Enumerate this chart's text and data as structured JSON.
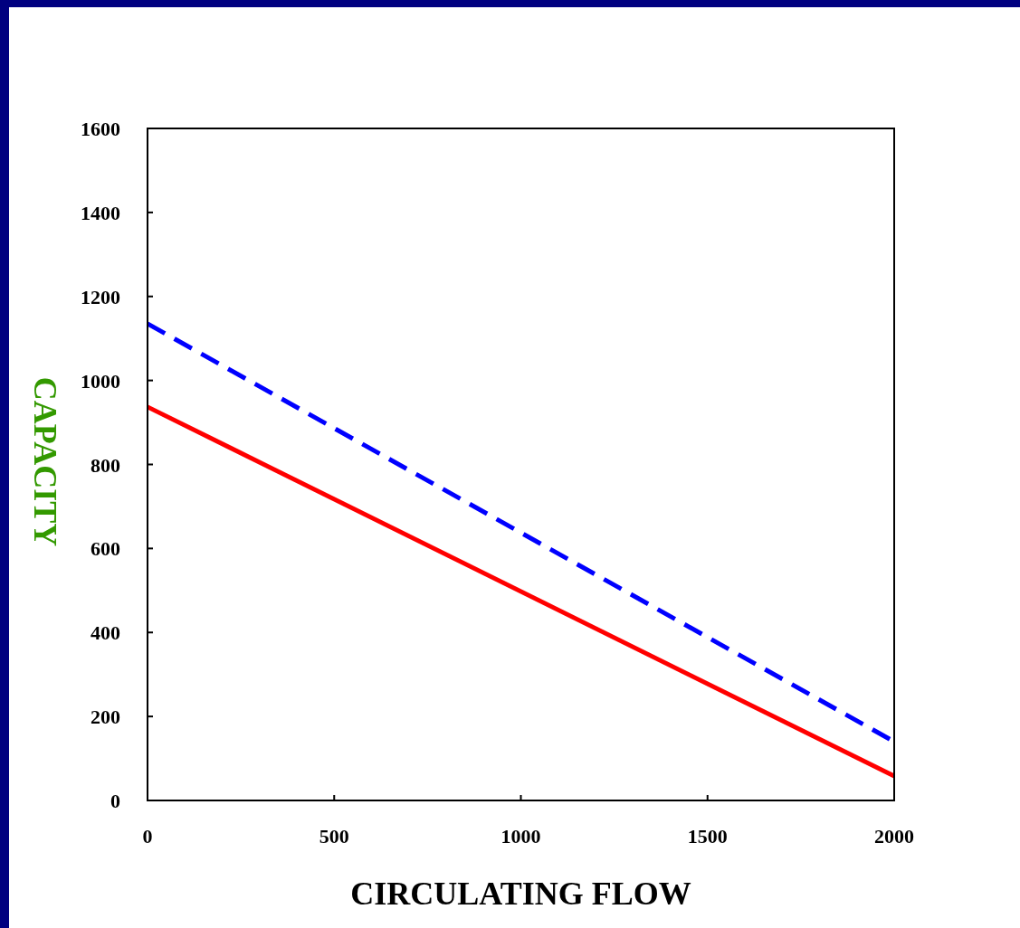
{
  "chart_data": {
    "type": "line",
    "xlabel": "CIRCULATING FLOW",
    "ylabel": "CAPACITY",
    "xlim": [
      0,
      2000
    ],
    "ylim": [
      0,
      1600
    ],
    "xticks": [
      0,
      500,
      1000,
      1500,
      2000
    ],
    "yticks": [
      0,
      200,
      400,
      600,
      800,
      1000,
      1200,
      1400,
      1600
    ],
    "grid": false,
    "marker": "none",
    "x": [
      0,
      2000
    ],
    "series": [
      {
        "color": "#0000ff",
        "values": [
          1135,
          140
        ],
        "line_style": "dashed"
      },
      {
        "color": "#ff0000",
        "values": [
          937,
          58
        ],
        "line_style": "solid"
      }
    ]
  }
}
